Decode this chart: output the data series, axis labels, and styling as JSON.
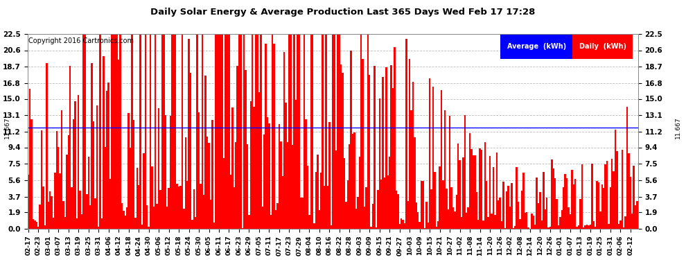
{
  "title": "Daily Solar Energy & Average Production Last 365 Days Wed Feb 17 17:28",
  "copyright": "Copyright 2016 Cartronics.com",
  "average_value": 11.667,
  "yticks": [
    0.0,
    1.9,
    3.7,
    5.6,
    7.5,
    9.4,
    11.2,
    13.1,
    15.0,
    16.8,
    18.7,
    20.6,
    22.5
  ],
  "bar_color": "#FF0000",
  "average_line_color": "#0000FF",
  "background_color": "#FFFFFF",
  "grid_color": "#AAAAAA",
  "x_labels": [
    "02-17",
    "02-23",
    "03-01",
    "03-07",
    "03-13",
    "03-19",
    "03-25",
    "03-31",
    "04-06",
    "04-12",
    "04-18",
    "04-24",
    "04-30",
    "05-06",
    "05-12",
    "05-18",
    "05-24",
    "05-30",
    "06-05",
    "06-11",
    "06-17",
    "06-23",
    "06-29",
    "07-05",
    "07-11",
    "07-17",
    "07-23",
    "07-29",
    "08-04",
    "08-10",
    "08-16",
    "08-22",
    "08-28",
    "09-03",
    "09-09",
    "09-15",
    "09-21",
    "09-27",
    "10-03",
    "10-09",
    "10-15",
    "10-21",
    "10-27",
    "11-02",
    "11-08",
    "11-14",
    "11-20",
    "11-26",
    "12-02",
    "12-08",
    "12-14",
    "12-20",
    "12-26",
    "01-01",
    "01-07",
    "01-13",
    "01-19",
    "01-25",
    "01-31",
    "02-06",
    "02-12"
  ],
  "num_bars": 365,
  "seed": 42,
  "figsize": [
    9.9,
    3.75
  ],
  "dpi": 100
}
